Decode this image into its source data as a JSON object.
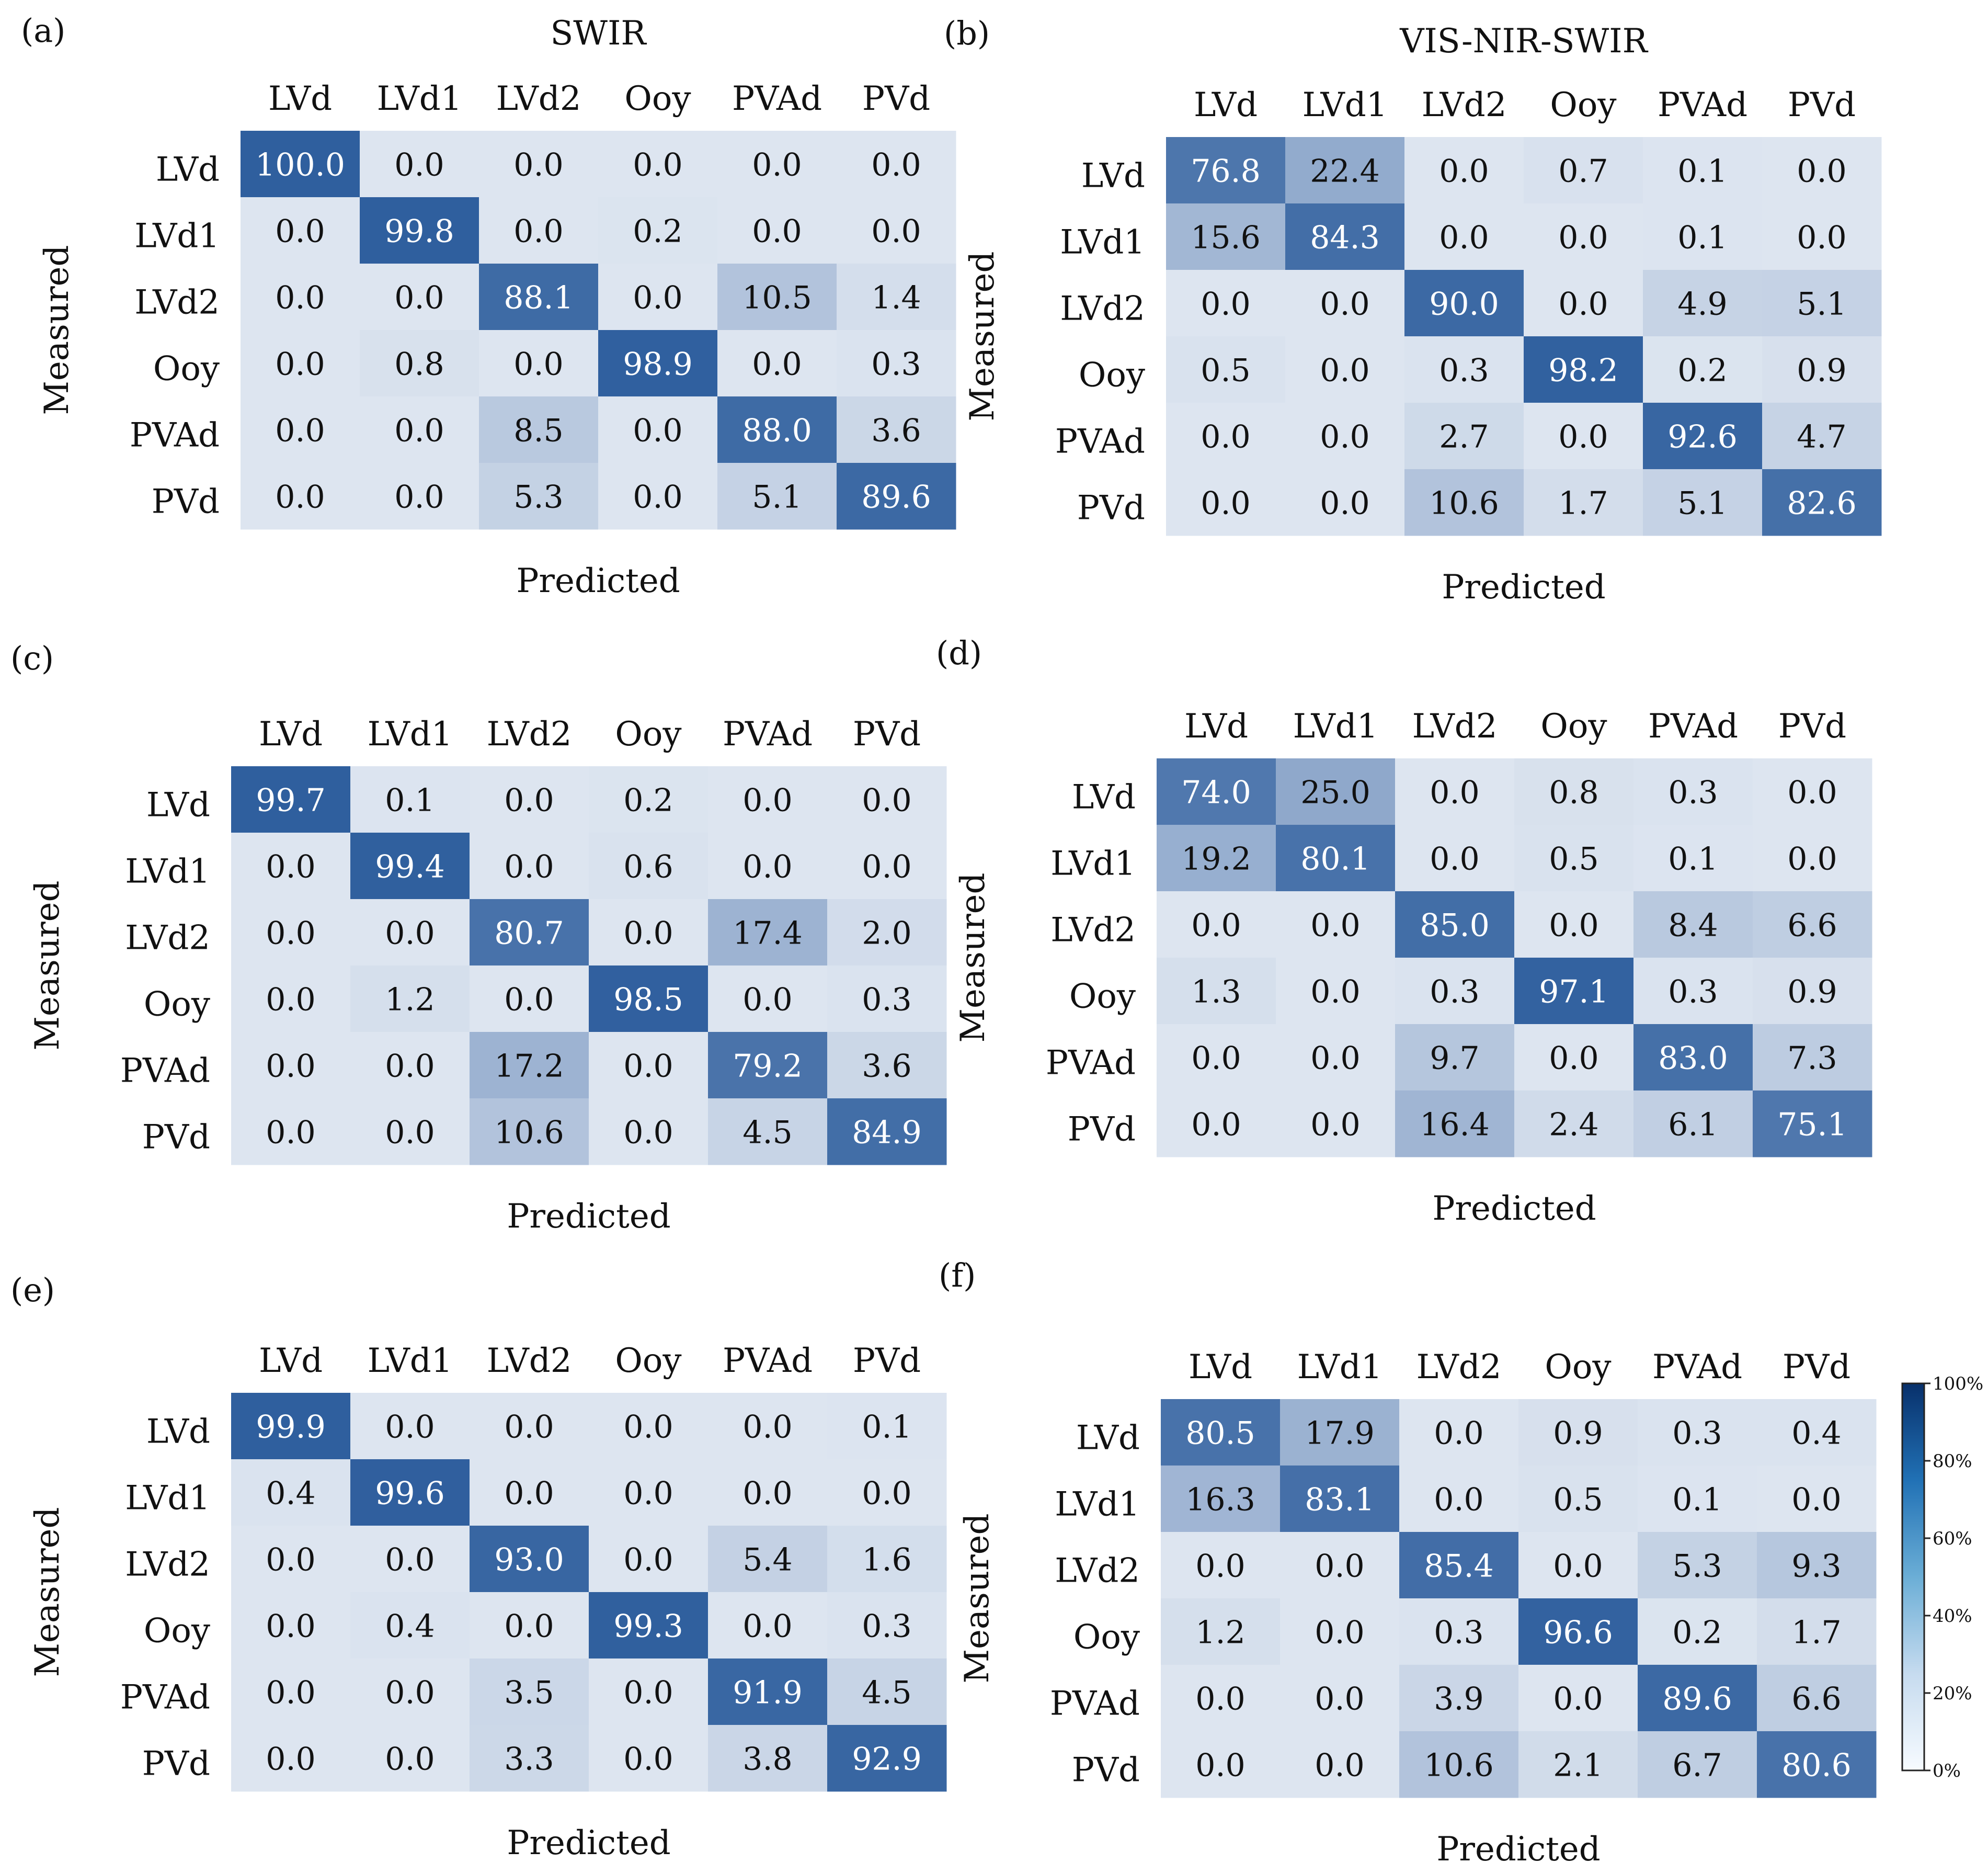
{
  "figure": {
    "colorbar": {
      "ticks": [
        "0%",
        "20%",
        "40%",
        "60%",
        "80%",
        "100%"
      ],
      "color_low": "#f7fbff",
      "color_high": "#08306b"
    },
    "cell_palette": {
      "low": "#dde5f0",
      "mid": "#5a7fb3",
      "high": "#2f5f9e"
    }
  },
  "chart_data": [
    {
      "type": "heatmap",
      "panel_label": "(a)",
      "title": "SWIR",
      "xlabel": "Predicted",
      "ylabel": "Measured",
      "columns": [
        "LVd",
        "LVd1",
        "LVd2",
        "Ooy",
        "PVAd",
        "PVd"
      ],
      "rows": [
        "LVd",
        "LVd1",
        "LVd2",
        "Ooy",
        "PVAd",
        "PVd"
      ],
      "values": [
        [
          "100.0",
          "0.0",
          "0.0",
          "0.0",
          "0.0",
          "0.0"
        ],
        [
          "0.0",
          "99.8",
          "0.0",
          "0.2",
          "0.0",
          "0.0"
        ],
        [
          "0.0",
          "0.0",
          "88.1",
          "0.0",
          "10.5",
          "1.4"
        ],
        [
          "0.0",
          "0.8",
          "0.0",
          "98.9",
          "0.0",
          "0.3"
        ],
        [
          "0.0",
          "0.0",
          "8.5",
          "0.0",
          "88.0",
          "3.6"
        ],
        [
          "0.0",
          "0.0",
          "5.3",
          "0.0",
          "5.1",
          "89.6"
        ]
      ]
    },
    {
      "type": "heatmap",
      "panel_label": "(b)",
      "title": "VIS-NIR-SWIR",
      "xlabel": "Predicted",
      "ylabel": "Measured",
      "columns": [
        "LVd",
        "LVd1",
        "LVd2",
        "Ooy",
        "PVAd",
        "PVd"
      ],
      "rows": [
        "LVd",
        "LVd1",
        "LVd2",
        "Ooy",
        "PVAd",
        "PVd"
      ],
      "values": [
        [
          "76.8",
          "22.4",
          "0.0",
          "0.7",
          "0.1",
          "0.0"
        ],
        [
          "15.6",
          "84.3",
          "0.0",
          "0.0",
          "0.1",
          "0.0"
        ],
        [
          "0.0",
          "0.0",
          "90.0",
          "0.0",
          "4.9",
          "5.1"
        ],
        [
          "0.5",
          "0.0",
          "0.3",
          "98.2",
          "0.2",
          "0.9"
        ],
        [
          "0.0",
          "0.0",
          "2.7",
          "0.0",
          "92.6",
          "4.7"
        ],
        [
          "0.0",
          "0.0",
          "10.6",
          "1.7",
          "5.1",
          "82.6"
        ]
      ]
    },
    {
      "type": "heatmap",
      "panel_label": "(c)",
      "title": "",
      "xlabel": "Predicted",
      "ylabel": "Measured",
      "columns": [
        "LVd",
        "LVd1",
        "LVd2",
        "Ooy",
        "PVAd",
        "PVd"
      ],
      "rows": [
        "LVd",
        "LVd1",
        "LVd2",
        "Ooy",
        "PVAd",
        "PVd"
      ],
      "values": [
        [
          "99.7",
          "0.1",
          "0.0",
          "0.2",
          "0.0",
          "0.0"
        ],
        [
          "0.0",
          "99.4",
          "0.0",
          "0.6",
          "0.0",
          "0.0"
        ],
        [
          "0.0",
          "0.0",
          "80.7",
          "0.0",
          "17.4",
          "2.0"
        ],
        [
          "0.0",
          "1.2",
          "0.0",
          "98.5",
          "0.0",
          "0.3"
        ],
        [
          "0.0",
          "0.0",
          "17.2",
          "0.0",
          "79.2",
          "3.6"
        ],
        [
          "0.0",
          "0.0",
          "10.6",
          "0.0",
          "4.5",
          "84.9"
        ]
      ]
    },
    {
      "type": "heatmap",
      "panel_label": "(d)",
      "title": "",
      "xlabel": "Predicted",
      "ylabel": "Measured",
      "columns": [
        "LVd",
        "LVd1",
        "LVd2",
        "Ooy",
        "PVAd",
        "PVd"
      ],
      "rows": [
        "LVd",
        "LVd1",
        "LVd2",
        "Ooy",
        "PVAd",
        "PVd"
      ],
      "values": [
        [
          "74.0",
          "25.0",
          "0.0",
          "0.8",
          "0.3",
          "0.0"
        ],
        [
          "19.2",
          "80.1",
          "0.0",
          "0.5",
          "0.1",
          "0.0"
        ],
        [
          "0.0",
          "0.0",
          "85.0",
          "0.0",
          "8.4",
          "6.6"
        ],
        [
          "1.3",
          "0.0",
          "0.3",
          "97.1",
          "0.3",
          "0.9"
        ],
        [
          "0.0",
          "0.0",
          "9.7",
          "0.0",
          "83.0",
          "7.3"
        ],
        [
          "0.0",
          "0.0",
          "16.4",
          "2.4",
          "6.1",
          "75.1"
        ]
      ]
    },
    {
      "type": "heatmap",
      "panel_label": "(e)",
      "title": "",
      "xlabel": "Predicted",
      "ylabel": "Measured",
      "columns": [
        "LVd",
        "LVd1",
        "LVd2",
        "Ooy",
        "PVAd",
        "PVd"
      ],
      "rows": [
        "LVd",
        "LVd1",
        "LVd2",
        "Ooy",
        "PVAd",
        "PVd"
      ],
      "values": [
        [
          "99.9",
          "0.0",
          "0.0",
          "0.0",
          "0.0",
          "0.1"
        ],
        [
          "0.4",
          "99.6",
          "0.0",
          "0.0",
          "0.0",
          "0.0"
        ],
        [
          "0.0",
          "0.0",
          "93.0",
          "0.0",
          "5.4",
          "1.6"
        ],
        [
          "0.0",
          "0.4",
          "0.0",
          "99.3",
          "0.0",
          "0.3"
        ],
        [
          "0.0",
          "0.0",
          "3.5",
          "0.0",
          "91.9",
          "4.5"
        ],
        [
          "0.0",
          "0.0",
          "3.3",
          "0.0",
          "3.8",
          "92.9"
        ]
      ]
    },
    {
      "type": "heatmap",
      "panel_label": "(f)",
      "title": "",
      "xlabel": "Predicted",
      "ylabel": "Measured",
      "columns": [
        "LVd",
        "LVd1",
        "LVd2",
        "Ooy",
        "PVAd",
        "PVd"
      ],
      "rows": [
        "LVd",
        "LVd1",
        "LVd2",
        "Ooy",
        "PVAd",
        "PVd"
      ],
      "values": [
        [
          "80.5",
          "17.9",
          "0.0",
          "0.9",
          "0.3",
          "0.4"
        ],
        [
          "16.3",
          "83.1",
          "0.0",
          "0.5",
          "0.1",
          "0.0"
        ],
        [
          "0.0",
          "0.0",
          "85.4",
          "0.0",
          "5.3",
          "9.3"
        ],
        [
          "1.2",
          "0.0",
          "0.3",
          "96.6",
          "0.2",
          "1.7"
        ],
        [
          "0.0",
          "0.0",
          "3.9",
          "0.0",
          "89.6",
          "6.6"
        ],
        [
          "0.0",
          "0.0",
          "10.6",
          "2.1",
          "6.7",
          "80.6"
        ]
      ]
    }
  ]
}
